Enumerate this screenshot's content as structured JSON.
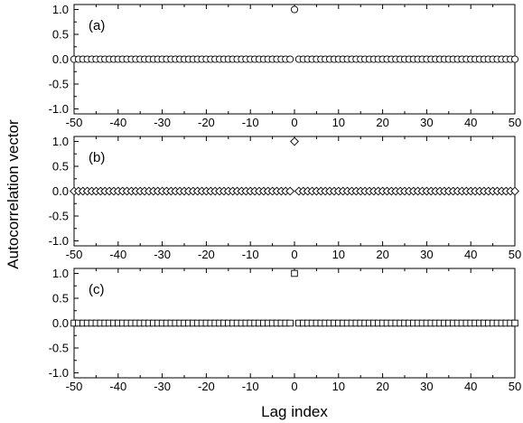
{
  "figure": {
    "ylabel": "Autocorrelation vector",
    "xlabel": "Lag index"
  },
  "chart_data": [
    {
      "type": "scatter",
      "panel_label": "(a)",
      "marker": "circle",
      "x": [
        -50,
        -49,
        -48,
        -47,
        -46,
        -45,
        -44,
        -43,
        -42,
        -41,
        -40,
        -39,
        -38,
        -37,
        -36,
        -35,
        -34,
        -33,
        -32,
        -31,
        -30,
        -29,
        -28,
        -27,
        -26,
        -25,
        -24,
        -23,
        -22,
        -21,
        -20,
        -19,
        -18,
        -17,
        -16,
        -15,
        -14,
        -13,
        -12,
        -11,
        -10,
        -9,
        -8,
        -7,
        -6,
        -5,
        -4,
        -3,
        -2,
        -1,
        0,
        1,
        2,
        3,
        4,
        5,
        6,
        7,
        8,
        9,
        10,
        11,
        12,
        13,
        14,
        15,
        16,
        17,
        18,
        19,
        20,
        21,
        22,
        23,
        24,
        25,
        26,
        27,
        28,
        29,
        30,
        31,
        32,
        33,
        34,
        35,
        36,
        37,
        38,
        39,
        40,
        41,
        42,
        43,
        44,
        45,
        46,
        47,
        48,
        49,
        50
      ],
      "series": [
        {
          "y": "0 for every lag except lag 0",
          "values_nonzero": [
            {
              "x": 0,
              "y": 1.0
            }
          ]
        }
      ],
      "xlim": [
        -50,
        50
      ],
      "ylim": [
        -1.1,
        1.1
      ],
      "xticks": [
        "-50",
        "-40",
        "-30",
        "-20",
        "-10",
        "0",
        "10",
        "20",
        "30",
        "40",
        "50"
      ],
      "yticks": [
        "1.0",
        "0.5",
        "0.0",
        "-0.5",
        "-1.0"
      ]
    },
    {
      "type": "scatter",
      "panel_label": "(b)",
      "marker": "diamond",
      "x": [
        -50,
        -49,
        -48,
        -47,
        -46,
        -45,
        -44,
        -43,
        -42,
        -41,
        -40,
        -39,
        -38,
        -37,
        -36,
        -35,
        -34,
        -33,
        -32,
        -31,
        -30,
        -29,
        -28,
        -27,
        -26,
        -25,
        -24,
        -23,
        -22,
        -21,
        -20,
        -19,
        -18,
        -17,
        -16,
        -15,
        -14,
        -13,
        -12,
        -11,
        -10,
        -9,
        -8,
        -7,
        -6,
        -5,
        -4,
        -3,
        -2,
        -1,
        0,
        1,
        2,
        3,
        4,
        5,
        6,
        7,
        8,
        9,
        10,
        11,
        12,
        13,
        14,
        15,
        16,
        17,
        18,
        19,
        20,
        21,
        22,
        23,
        24,
        25,
        26,
        27,
        28,
        29,
        30,
        31,
        32,
        33,
        34,
        35,
        36,
        37,
        38,
        39,
        40,
        41,
        42,
        43,
        44,
        45,
        46,
        47,
        48,
        49,
        50
      ],
      "series": [
        {
          "y": "0 for every lag except lag 0",
          "values_nonzero": [
            {
              "x": 0,
              "y": 1.0
            }
          ]
        }
      ],
      "xlim": [
        -50,
        50
      ],
      "ylim": [
        -1.1,
        1.1
      ],
      "xticks": [
        "-50",
        "-40",
        "-30",
        "-20",
        "-10",
        "0",
        "10",
        "20",
        "30",
        "40",
        "50"
      ],
      "yticks": [
        "1.0",
        "0.5",
        "0.0",
        "-0.5",
        "-1.0"
      ]
    },
    {
      "type": "scatter",
      "panel_label": "(c)",
      "marker": "square",
      "x": [
        -50,
        -49,
        -48,
        -47,
        -46,
        -45,
        -44,
        -43,
        -42,
        -41,
        -40,
        -39,
        -38,
        -37,
        -36,
        -35,
        -34,
        -33,
        -32,
        -31,
        -30,
        -29,
        -28,
        -27,
        -26,
        -25,
        -24,
        -23,
        -22,
        -21,
        -20,
        -19,
        -18,
        -17,
        -16,
        -15,
        -14,
        -13,
        -12,
        -11,
        -10,
        -9,
        -8,
        -7,
        -6,
        -5,
        -4,
        -3,
        -2,
        -1,
        0,
        1,
        2,
        3,
        4,
        5,
        6,
        7,
        8,
        9,
        10,
        11,
        12,
        13,
        14,
        15,
        16,
        17,
        18,
        19,
        20,
        21,
        22,
        23,
        24,
        25,
        26,
        27,
        28,
        29,
        30,
        31,
        32,
        33,
        34,
        35,
        36,
        37,
        38,
        39,
        40,
        41,
        42,
        43,
        44,
        45,
        46,
        47,
        48,
        49,
        50
      ],
      "series": [
        {
          "y": "0 for every lag except lag 0",
          "values_nonzero": [
            {
              "x": 0,
              "y": 1.0
            }
          ]
        }
      ],
      "xlim": [
        -50,
        50
      ],
      "ylim": [
        -1.1,
        1.1
      ],
      "xticks": [
        "-50",
        "-40",
        "-30",
        "-20",
        "-10",
        "0",
        "10",
        "20",
        "30",
        "40",
        "50"
      ],
      "yticks": [
        "1.0",
        "0.5",
        "0.0",
        "-0.5",
        "-1.0"
      ]
    }
  ]
}
